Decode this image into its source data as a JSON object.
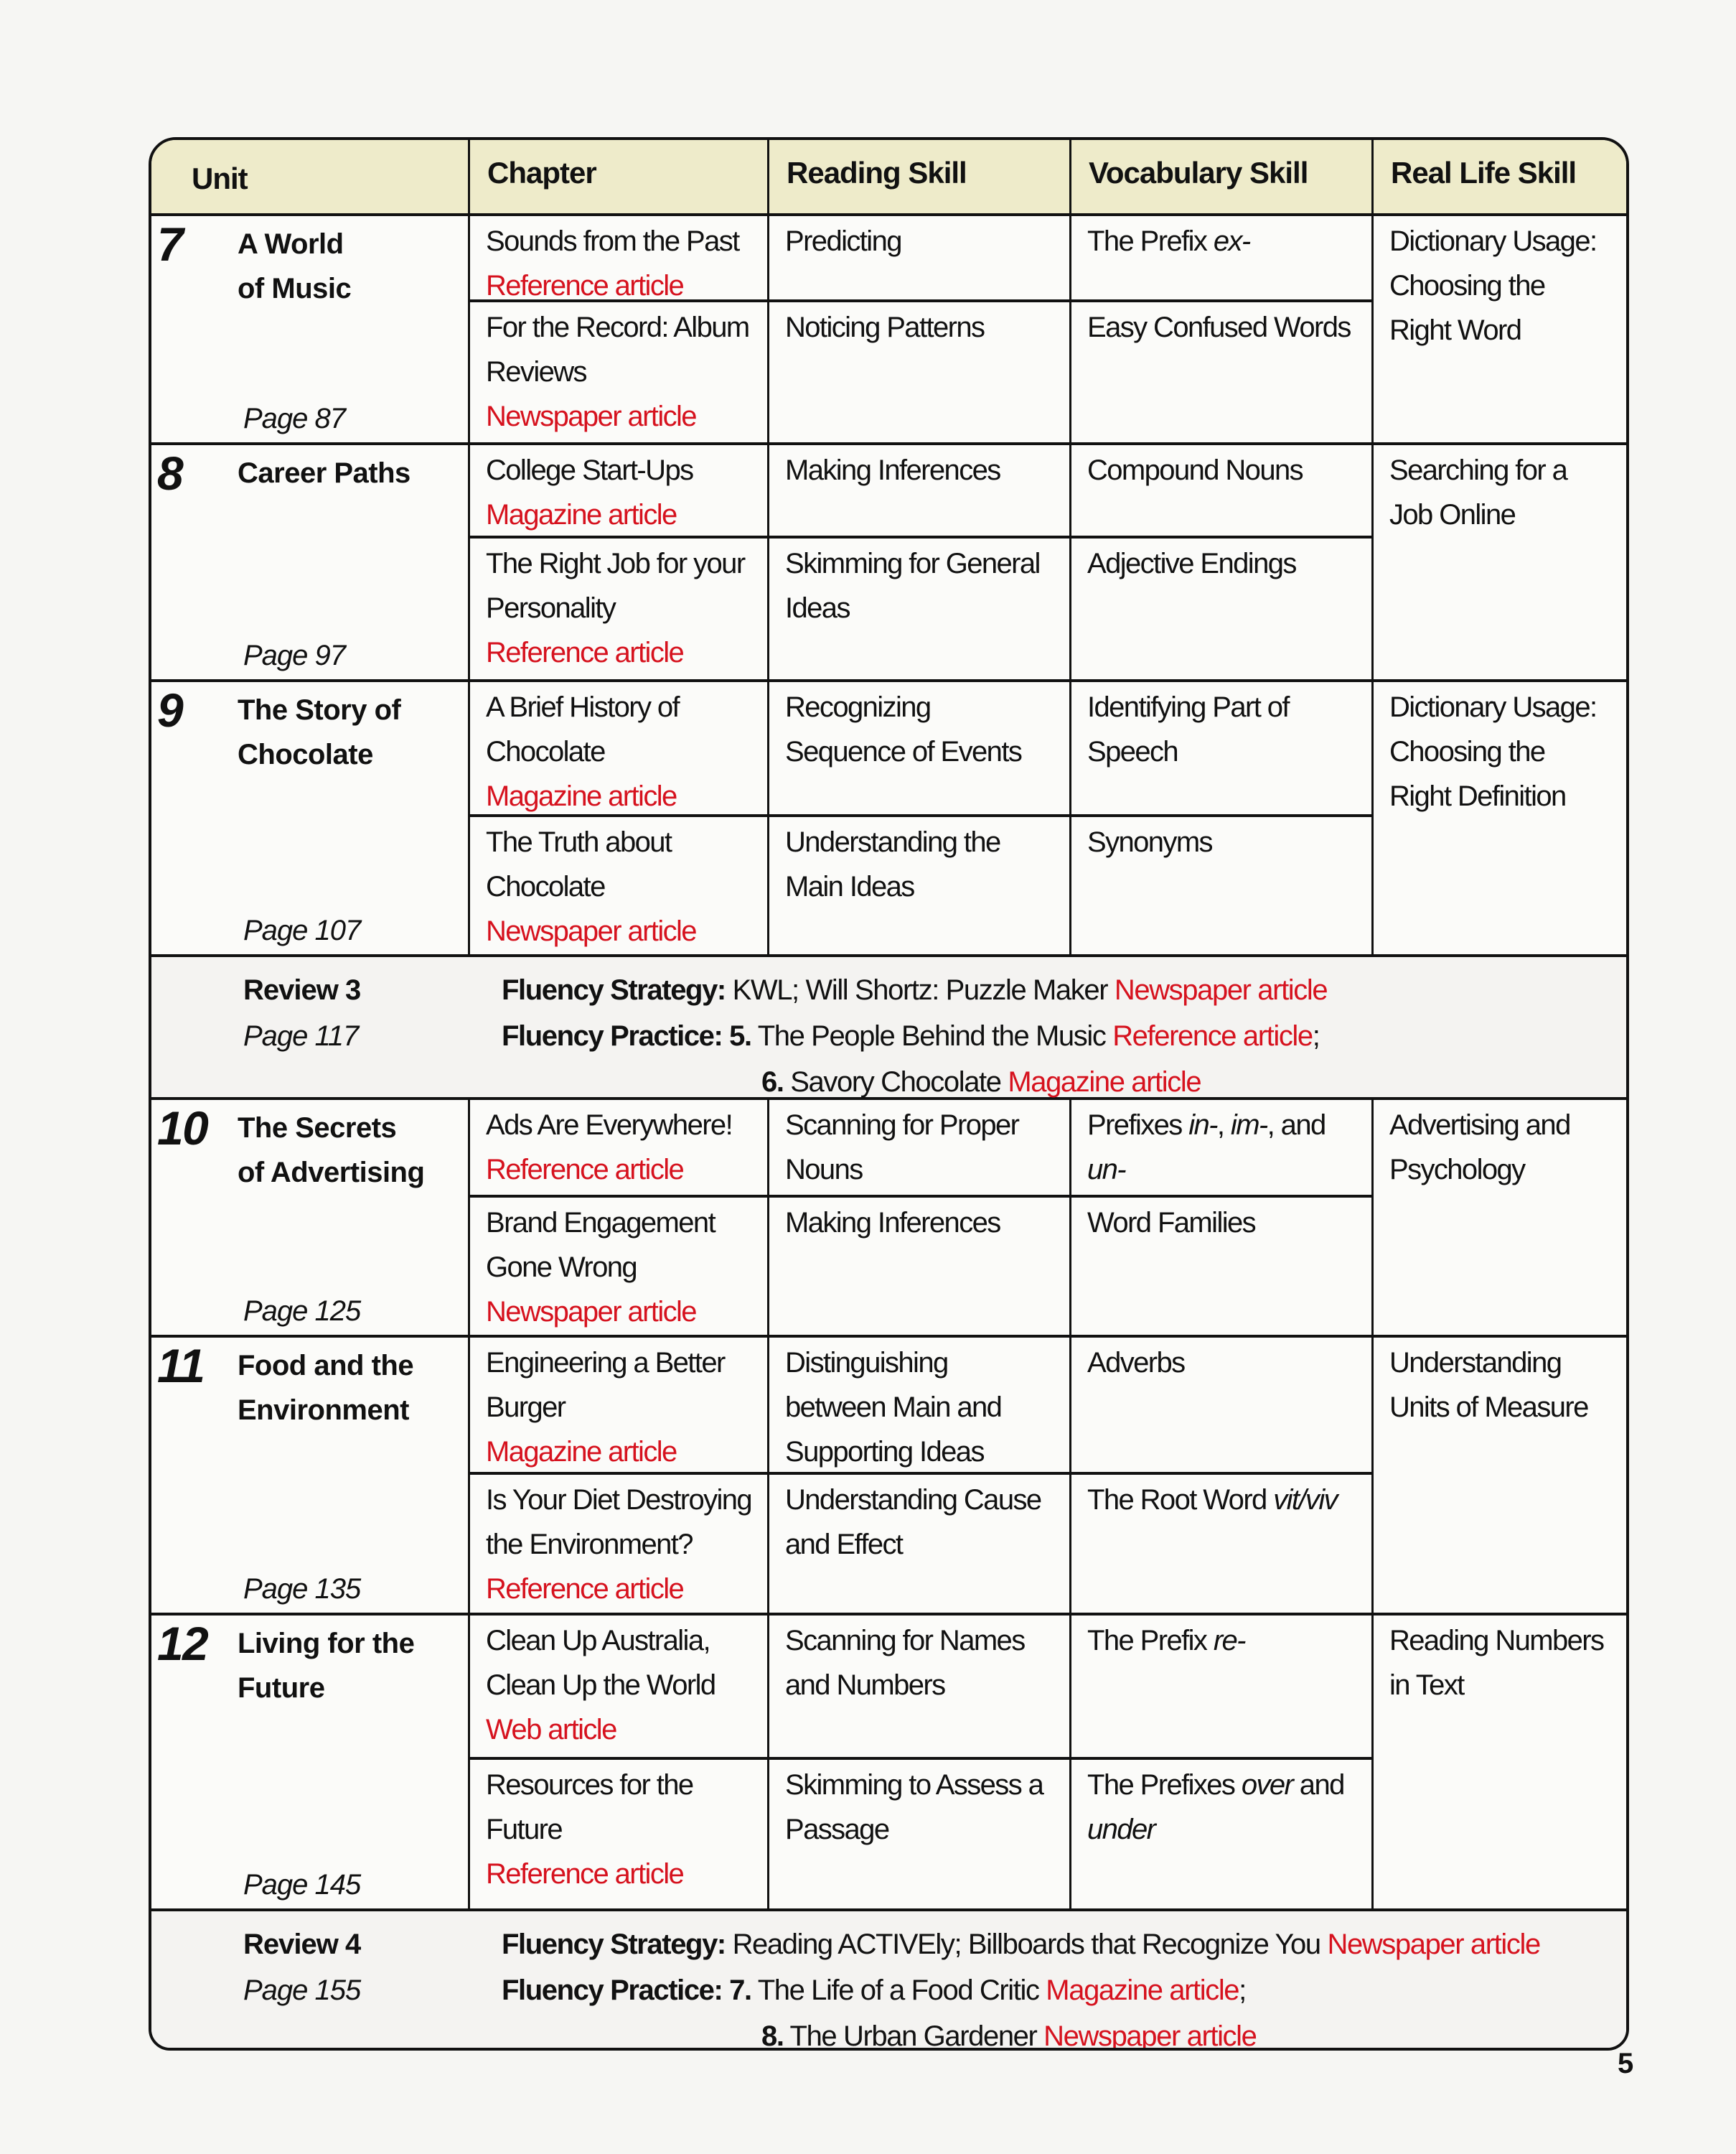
{
  "header": {
    "unit": "Unit",
    "chapter": "Chapter",
    "reading": "Reading Skill",
    "vocab": "Vocabulary Skill",
    "real_life": "Real Life Skill"
  },
  "colors": {
    "header_bg": "#eeebca",
    "article_type": "#d6121e"
  },
  "sections": [
    {
      "kind": "unit",
      "number": "7",
      "title": [
        "A World",
        "of Music"
      ],
      "page": "Page 87",
      "chapters": [
        {
          "title": "Sounds from the Past",
          "type": "Reference article"
        },
        {
          "title": "For the Record: Album Reviews",
          "type": "Newspaper article"
        }
      ],
      "reading": [
        "Predicting",
        "Noticing Patterns"
      ],
      "vocab": [
        [
          {
            "t": "The Prefix "
          },
          {
            "t": "ex-",
            "s": "i"
          }
        ],
        [
          {
            "t": "Easy Confused Words"
          }
        ]
      ],
      "real_life": "Dictionary Usage: Choosing the Right Word"
    },
    {
      "kind": "unit",
      "number": "8",
      "title": [
        "Career Paths"
      ],
      "page": "Page 97",
      "chapters": [
        {
          "title": "College Start-Ups",
          "type": "Magazine article"
        },
        {
          "title": "The Right Job for your Personality",
          "type": "Reference article"
        }
      ],
      "reading": [
        "Making Inferences",
        "Skimming for General Ideas"
      ],
      "vocab": [
        [
          {
            "t": "Compound Nouns"
          }
        ],
        [
          {
            "t": "Adjective Endings"
          }
        ]
      ],
      "real_life": "Searching for a Job Online"
    },
    {
      "kind": "unit",
      "number": "9",
      "title": [
        "The Story of",
        "Chocolate"
      ],
      "page": "Page 107",
      "chapters": [
        {
          "title": "A Brief History of Chocolate",
          "type": "Magazine article"
        },
        {
          "title": "The Truth about Chocolate",
          "type": "Newspaper article"
        }
      ],
      "reading": [
        "Recognizing Sequence of Events",
        "Understanding the Main Ideas"
      ],
      "vocab": [
        [
          {
            "t": "Identifying Part of Speech"
          }
        ],
        [
          {
            "t": "Synonyms"
          }
        ]
      ],
      "real_life": "Dictionary Usage: Choosing the Right Definition"
    },
    {
      "kind": "review",
      "label": "Review 3",
      "page": "Page 117",
      "lines": [
        [
          {
            "t": "Fluency Strategy:",
            "s": "b"
          },
          {
            "t": " KWL; Will Shortz: Puzzle Maker "
          },
          {
            "t": "Newspaper article",
            "s": "r"
          }
        ],
        [
          {
            "t": "Fluency Practice: 5.",
            "s": "b"
          },
          {
            "t": " The People Behind the Music "
          },
          {
            "t": "Reference article",
            "s": "r"
          },
          {
            "t": ";"
          }
        ],
        [
          {
            "t": "6.",
            "s": "b"
          },
          {
            "t": " Savory Chocolate "
          },
          {
            "t": "Magazine article",
            "s": "r"
          }
        ]
      ]
    },
    {
      "kind": "unit",
      "number": "10",
      "title": [
        "The Secrets",
        "of Advertising"
      ],
      "page": "Page 125",
      "chapters": [
        {
          "title": "Ads Are Everywhere!",
          "type": "Reference article"
        },
        {
          "title": "Brand Engagement Gone Wrong",
          "type": "Newspaper article"
        }
      ],
      "reading": [
        "Scanning for Proper Nouns",
        "Making Inferences"
      ],
      "vocab": [
        [
          {
            "t": "Prefixes "
          },
          {
            "t": "in-",
            "s": "i"
          },
          {
            "t": ", "
          },
          {
            "t": "im-",
            "s": "i"
          },
          {
            "t": ", and "
          },
          {
            "t": "un-",
            "s": "i"
          }
        ],
        [
          {
            "t": "Word Families"
          }
        ]
      ],
      "real_life": "Advertising and Psychology"
    },
    {
      "kind": "unit",
      "number": "11",
      "title": [
        "Food and the",
        "Environment"
      ],
      "page": "Page 135",
      "chapters": [
        {
          "title": "Engineering a Better Burger",
          "type": "Magazine article"
        },
        {
          "title": "Is Your Diet Destroying the Environment?",
          "type": "Reference article"
        }
      ],
      "reading": [
        "Distinguishing between Main and Supporting Ideas",
        "Understanding Cause and Effect"
      ],
      "vocab": [
        [
          {
            "t": "Adverbs"
          }
        ],
        [
          {
            "t": "The Root Word "
          },
          {
            "t": "vit/viv",
            "s": "i"
          }
        ]
      ],
      "real_life": "Understanding Units of Measure"
    },
    {
      "kind": "unit",
      "number": "12",
      "title": [
        "Living for the",
        "Future"
      ],
      "page": "Page 145",
      "chapters": [
        {
          "title": "Clean Up Australia, Clean Up the World",
          "type": "Web article"
        },
        {
          "title": "Resources for the Future",
          "type": "Reference article"
        }
      ],
      "reading": [
        "Scanning for Names and Numbers",
        "Skimming to Assess a Passage"
      ],
      "vocab": [
        [
          {
            "t": "The Prefix "
          },
          {
            "t": "re-",
            "s": "i"
          }
        ],
        [
          {
            "t": "The Prefixes "
          },
          {
            "t": "over",
            "s": "i"
          },
          {
            "t": " and "
          },
          {
            "t": "under",
            "s": "i"
          }
        ]
      ],
      "real_life": "Reading Numbers in Text"
    },
    {
      "kind": "review",
      "label": "Review 4",
      "page": "Page 155",
      "lines": [
        [
          {
            "t": "Fluency Strategy:",
            "s": "b"
          },
          {
            "t": " Reading ACTIVEly; Billboards that Recognize You "
          },
          {
            "t": "Newspaper article",
            "s": "r"
          }
        ],
        [
          {
            "t": "Fluency Practice: 7.",
            "s": "b"
          },
          {
            "t": " The Life of a Food Critic "
          },
          {
            "t": "Magazine article",
            "s": "r"
          },
          {
            "t": ";"
          }
        ],
        [
          {
            "t": "8.",
            "s": "b"
          },
          {
            "t": " The Urban Gardener "
          },
          {
            "t": "Newspaper article",
            "s": "r"
          }
        ]
      ]
    }
  ],
  "page_number": "5"
}
